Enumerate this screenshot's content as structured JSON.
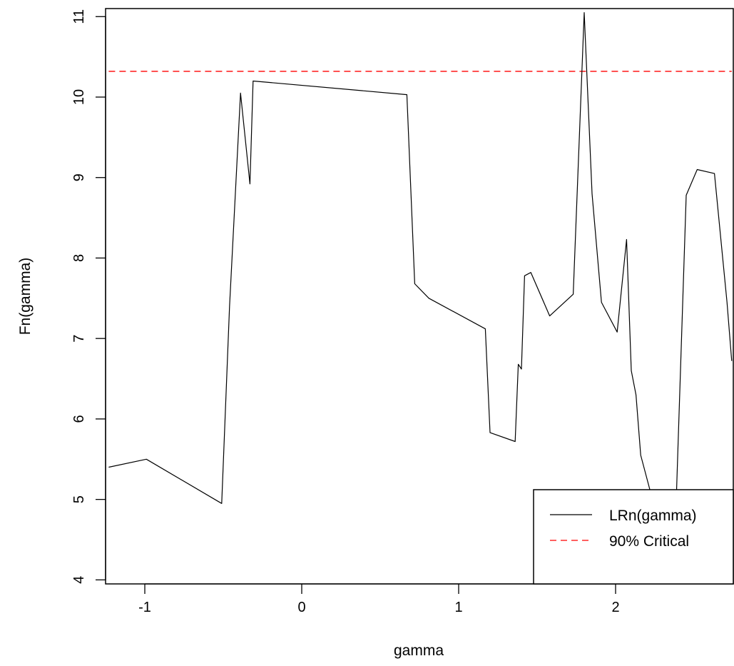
{
  "chart_data": {
    "type": "line",
    "xlabel": "gamma",
    "ylabel": "Fn(gamma)",
    "xlim": [
      -1.25,
      2.75
    ],
    "ylim": [
      3.95,
      11.1
    ],
    "x_ticks": [
      -1,
      0,
      1,
      2
    ],
    "y_ticks": [
      4,
      5,
      6,
      7,
      8,
      9,
      10,
      11
    ],
    "grid": false,
    "legend_position": "bottom-right",
    "critical_value": 10.32,
    "series": [
      {
        "name": "LRn(gamma)",
        "style": "solid",
        "color": "#000000",
        "x": [
          -1.23,
          -0.99,
          -0.51,
          -0.46,
          -0.39,
          -0.33,
          -0.31,
          0.67,
          0.72,
          0.81,
          1.17,
          1.2,
          1.36,
          1.38,
          1.4,
          1.42,
          1.46,
          1.58,
          1.73,
          1.8,
          1.85,
          1.91,
          2.01,
          2.07,
          2.1,
          2.13,
          2.16,
          2.33,
          2.38,
          2.45,
          2.52,
          2.63,
          2.71,
          2.74
        ],
        "y": [
          5.4,
          5.5,
          4.95,
          7.4,
          10.05,
          8.92,
          10.2,
          10.03,
          7.68,
          7.5,
          7.12,
          5.83,
          5.72,
          6.68,
          6.62,
          7.78,
          7.82,
          7.28,
          7.55,
          11.05,
          8.8,
          7.45,
          7.08,
          8.23,
          6.6,
          6.3,
          5.55,
          4.3,
          4.6,
          8.78,
          9.1,
          9.05,
          7.45,
          6.72
        ]
      },
      {
        "name": "90% Critical",
        "style": "dashed",
        "color": "#ff0000"
      }
    ]
  }
}
